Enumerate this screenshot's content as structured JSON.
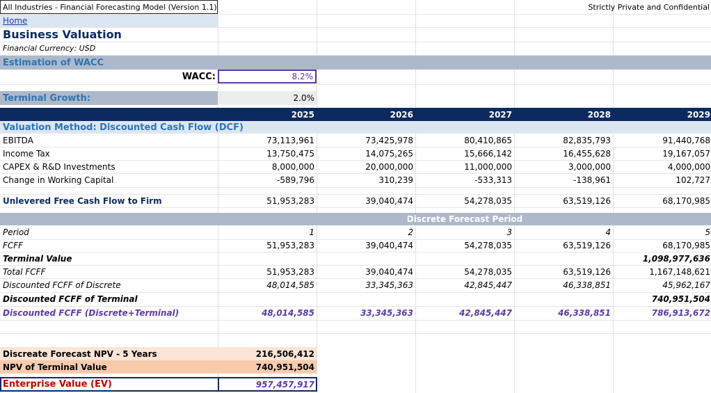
{
  "header": {
    "model_title": "All Industries - Financial Forecasting Model (Version 1.1)",
    "confidentiality": "Strictly Private and Confidential",
    "home_link": "Home",
    "page_title": "Business Valuation",
    "currency_note": "Financial Currency: USD"
  },
  "wacc_section": {
    "title": "Estimation of WACC",
    "wacc_label": "WACC:",
    "wacc_value": "8.2%",
    "terminal_growth_label": "Terminal Growth:",
    "terminal_growth_value": "2.0%"
  },
  "years": [
    "2025",
    "2026",
    "2027",
    "2028",
    "2029"
  ],
  "dcf": {
    "title": "Valuation Method: Discounted Cash Flow (DCF)",
    "rows": [
      {
        "label": "EBITDA",
        "values": [
          "73,113,961",
          "73,425,978",
          "80,410,865",
          "82,835,793",
          "91,440,768"
        ]
      },
      {
        "label": "Income Tax",
        "values": [
          "13,750,475",
          "14,075,265",
          "15,666,142",
          "16,455,628",
          "19,167,057"
        ]
      },
      {
        "label": "CAPEX & R&D Investments",
        "values": [
          "8,000,000",
          "20,000,000",
          "11,000,000",
          "3,000,000",
          "4,000,000"
        ]
      },
      {
        "label": "Change in Working Capital",
        "values": [
          "-589,796",
          "310,239",
          "-533,313",
          "-138,961",
          "102,727"
        ]
      }
    ],
    "ufcf": {
      "label": "Unlevered Free Cash Flow to Firm",
      "values": [
        "51,953,283",
        "39,040,474",
        "54,278,035",
        "63,519,126",
        "68,170,985"
      ]
    }
  },
  "forecast": {
    "band_label": "Discrete Forecast Period",
    "period": {
      "label": "Period",
      "values": [
        "1",
        "2",
        "3",
        "4",
        "5"
      ]
    },
    "fcff": {
      "label": "FCFF",
      "values": [
        "51,953,283",
        "39,040,474",
        "54,278,035",
        "63,519,126",
        "68,170,985"
      ]
    },
    "terminal_value": {
      "label": "Terminal Value",
      "value_2029": "1,098,977,636"
    },
    "total_fcff": {
      "label": "Total FCFF",
      "values": [
        "51,953,283",
        "39,040,474",
        "54,278,035",
        "63,519,126",
        "1,167,148,621"
      ]
    },
    "disc_discrete": {
      "label": "Discounted FCFF of Discrete",
      "values": [
        "48,014,585",
        "33,345,363",
        "42,845,447",
        "46,338,851",
        "45,962,167"
      ]
    },
    "disc_terminal": {
      "label": "Discounted FCFF of Terminal",
      "value_2029": "740,951,504"
    },
    "disc_total": {
      "label": "Discounted FCFF (Discrete+Terminal)",
      "values": [
        "48,014,585",
        "33,345,363",
        "42,845,447",
        "46,338,851",
        "786,913,672"
      ]
    }
  },
  "summary": {
    "npv_discrete": {
      "label": "Discreate Forecast NPV - 5 Years",
      "value": "216,506,412"
    },
    "npv_terminal": {
      "label": "NPV of Terminal Value",
      "value": "740,951,504"
    },
    "ev": {
      "label": "Enterprise Value (EV)",
      "value": "957,457,917"
    }
  },
  "colors": {
    "navy_band": "#0c2a5e",
    "section_band": "#adb9ca",
    "heading_blue": "#2e74b5",
    "purple_text": "#5b3ba8",
    "summary_light": "#fce4d6",
    "summary_dark": "#f8cbad",
    "ev_red": "#c00000"
  }
}
